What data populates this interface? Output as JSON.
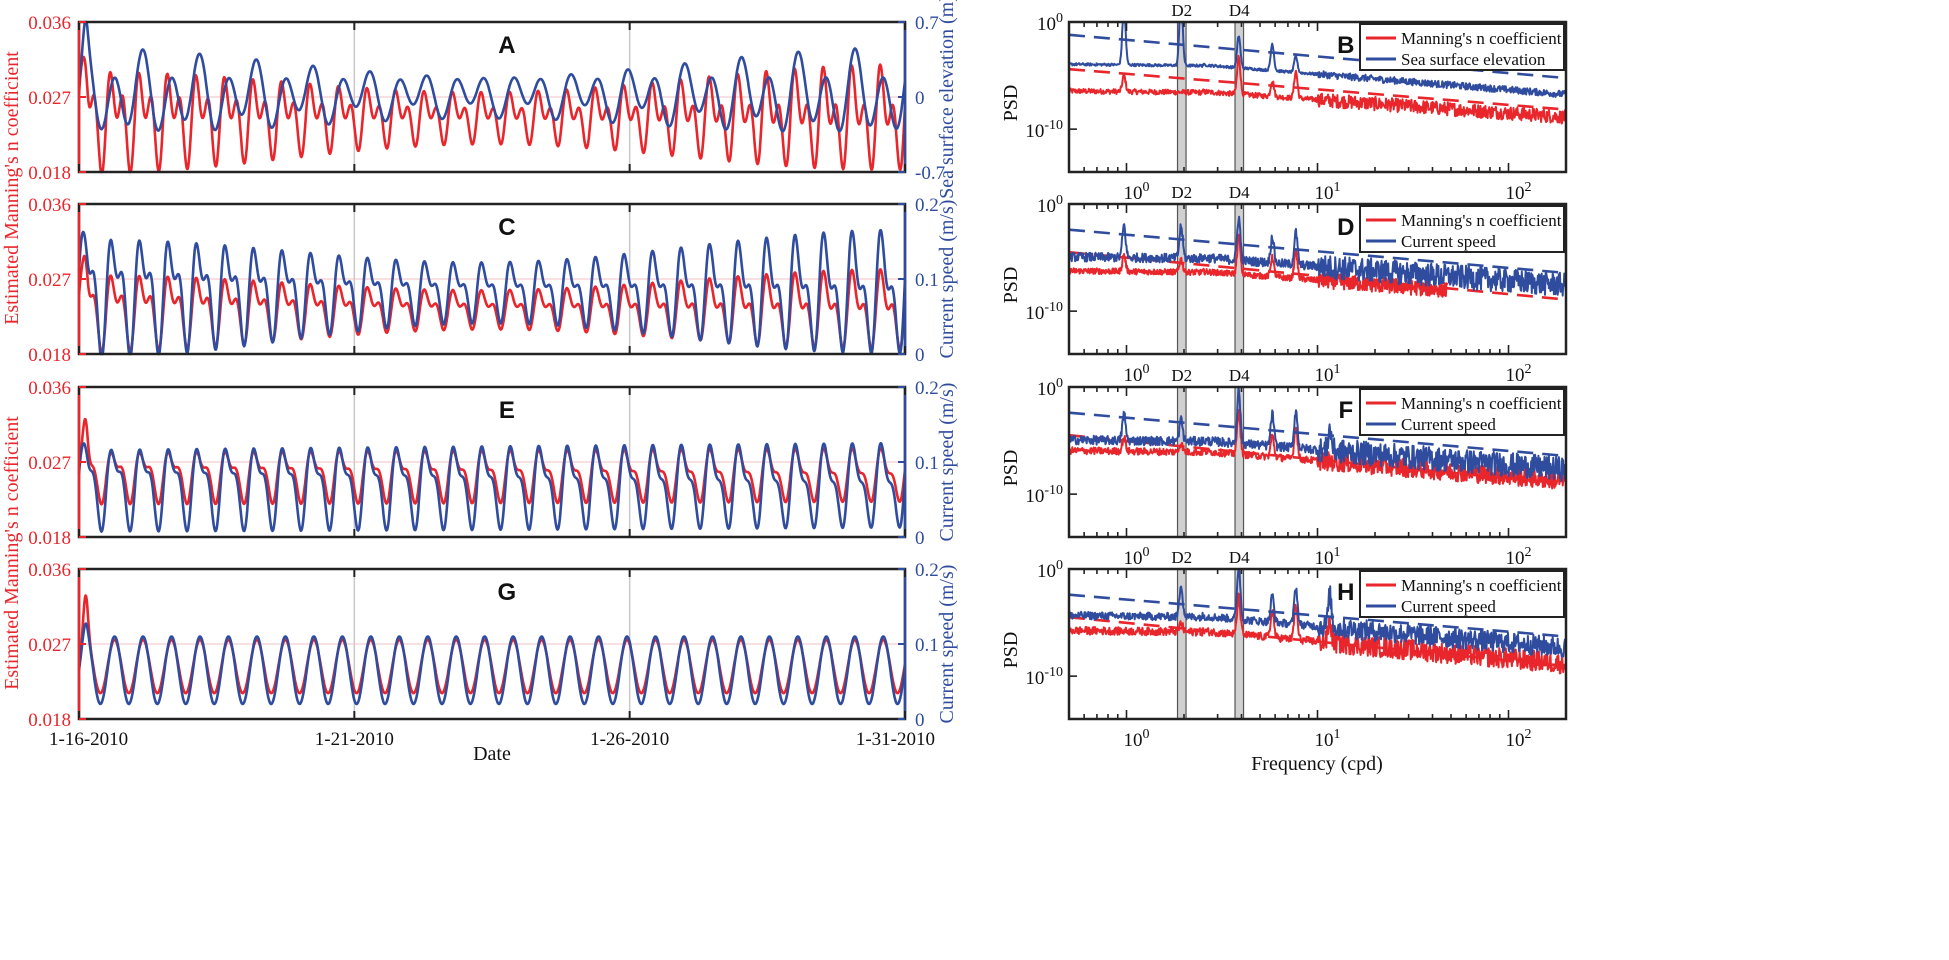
{
  "figure": {
    "x_axis_label_time": "Date",
    "x_axis_label_freq": "Frequency (cpd)",
    "colors": {
      "red": "#e8262b",
      "blue": "#2f4c9f",
      "gray_band": "#d0d0d0",
      "grid": "#c8c8c8"
    },
    "left_y_labels": [
      "Estimated Manning's n coefficient",
      "Estimated Manning's n coefficient"
    ]
  },
  "chart_data": [
    {
      "id": "A",
      "type": "line",
      "title": "A",
      "x_tick_labels": [
        "1-16-2010",
        "1-21-2010",
        "1-26-2010",
        "1-31-2010"
      ],
      "xlim_days": [
        0,
        15
      ],
      "ylabel_left": "Estimated Manning's n coefficient",
      "ylim_left": [
        0.018,
        0.036
      ],
      "yticks_left": [
        "0.018",
        "0.027",
        "0.036"
      ],
      "ylabel_right": "Sea surface elevation (m)",
      "ylim_right": [
        -0.7,
        0.7
      ],
      "yticks_right": [
        "-0.7",
        "0",
        "0.7"
      ],
      "series": [
        {
          "name": "Manning's n coefficient",
          "axis": "left",
          "color": "#e8262b",
          "model": {
            "mean": 0.0247,
            "amp_a": 0.0037,
            "amp_b": 0.0035,
            "period_a_days": 0.517,
            "period_b_days": 0.259,
            "spring_neap_days": 14.77,
            "spike": 0.033
          }
        },
        {
          "name": "Sea surface elevation",
          "axis": "right",
          "color": "#2f4c9f",
          "model": {
            "mean": 0.02,
            "amp_a": 0.3,
            "amp_b": 0.14,
            "period_a_days": 0.517,
            "period_b_days": 1.0,
            "spring_neap_days": 14.77,
            "spike": 0.55
          }
        }
      ]
    },
    {
      "id": "C",
      "type": "line",
      "title": "C",
      "x_tick_labels": [
        "1-16-2010",
        "1-21-2010",
        "1-26-2010",
        "1-31-2010"
      ],
      "xlim_days": [
        0,
        15
      ],
      "ylim_left": [
        0.018,
        0.036
      ],
      "yticks_left": [
        "0.018",
        "0.027",
        "0.036"
      ],
      "ylabel_right": "Current speed (m/s)",
      "ylim_right": [
        0,
        0.2
      ],
      "yticks_right": [
        "0",
        "0.1",
        "0.2"
      ],
      "series": [
        {
          "name": "Manning's n coefficient",
          "axis": "left",
          "color": "#e8262b",
          "model": {
            "mean": 0.0235,
            "amp_a": 0.0033,
            "amp_b": 0.0022,
            "period_a_days": 0.517,
            "period_b_days": 0.259,
            "spring_neap_days": 14.77,
            "spike": 0.031
          }
        },
        {
          "name": "Current speed",
          "axis": "right",
          "color": "#2f4c9f",
          "model": {
            "mean": 0.085,
            "amp_a": 0.06,
            "amp_b": 0.035,
            "period_a_days": 0.517,
            "period_b_days": 0.259,
            "spring_neap_days": 14.77,
            "spike": 0.13
          }
        }
      ]
    },
    {
      "id": "E",
      "type": "line",
      "title": "E",
      "x_tick_labels": [
        "1-16-2010",
        "1-21-2010",
        "1-26-2010",
        "1-31-2010"
      ],
      "xlim_days": [
        0,
        15
      ],
      "ylabel_left": "Estimated Manning's n coefficient",
      "ylim_left": [
        0.018,
        0.036
      ],
      "yticks_left": [
        "0.018",
        "0.027",
        "0.036"
      ],
      "ylabel_right": "Current speed (m/s)",
      "ylim_right": [
        0,
        0.2
      ],
      "yticks_right": [
        "0",
        "0.1",
        "0.2"
      ],
      "series": [
        {
          "name": "Manning's n coefficient",
          "axis": "left",
          "color": "#e8262b",
          "model": {
            "mean": 0.0255,
            "amp_a": 0.0025,
            "amp_b": 0.0012,
            "period_a_days": 0.517,
            "period_b_days": 0.259,
            "spring_neap_days": 0,
            "spike": 0.035
          }
        },
        {
          "name": "Current speed",
          "axis": "right",
          "color": "#2f4c9f",
          "model": {
            "mean": 0.07,
            "amp_a": 0.045,
            "amp_b": 0.02,
            "period_a_days": 0.517,
            "period_b_days": 0.259,
            "spring_neap_days": 0,
            "spike": 0.1
          }
        }
      ]
    },
    {
      "id": "G",
      "type": "line",
      "title": "G",
      "x_tick_labels": [
        "1-16-2010",
        "1-21-2010",
        "1-26-2010",
        "1-31-2010"
      ],
      "xlim_days": [
        0,
        15
      ],
      "ylim_left": [
        0.018,
        0.036
      ],
      "yticks_left": [
        "0.018",
        "0.027",
        "0.036"
      ],
      "ylabel_right": "Current speed (m/s)",
      "ylim_right": [
        0,
        0.2
      ],
      "yticks_right": [
        "0",
        "0.1",
        "0.2"
      ],
      "series": [
        {
          "name": "Manning's n coefficient",
          "axis": "left",
          "color": "#e8262b",
          "model": {
            "mean": 0.0243,
            "amp_a": 0.0032,
            "amp_b": 0.0,
            "period_a_days": 0.517,
            "period_b_days": 0.259,
            "spring_neap_days": 0,
            "spike": 0.035
          }
        },
        {
          "name": "Current speed",
          "axis": "right",
          "color": "#2f4c9f",
          "model": {
            "mean": 0.065,
            "amp_a": 0.045,
            "amp_b": 0.0,
            "period_a_days": 0.517,
            "period_b_days": 0.259,
            "spring_neap_days": 0,
            "spike": 0.1
          }
        }
      ]
    },
    {
      "id": "B",
      "type": "line",
      "title": "B",
      "scale": "loglog",
      "xlim": [
        0.5,
        200
      ],
      "ylim_exp": [
        -14,
        0
      ],
      "x_tick_labels": [
        "10^0",
        "10^1",
        "10^2"
      ],
      "y_tick_labels": [
        "10^0",
        "10^-10"
      ],
      "ylabel": "PSD",
      "bands": [
        {
          "label": "D2",
          "from": 1.85,
          "to": 2.05
        },
        {
          "label": "D4",
          "from": 3.7,
          "to": 4.1
        }
      ],
      "legend": [
        "Manning's n coefficient",
        "Sea surface elevation"
      ],
      "series": [
        {
          "name": "Manning's n coefficient",
          "color": "#e8262b",
          "base_exp": -6.5,
          "slope": -1.25,
          "peaks": [
            [
              0.97,
              1.5
            ],
            [
              3.87,
              3.5
            ],
            [
              5.8,
              1.5
            ],
            [
              7.7,
              2.5
            ]
          ],
          "noise": 0.4,
          "dash_start_exp": -4.4,
          "dash_slope": -1.45
        },
        {
          "name": "Sea surface elevation",
          "color": "#2f4c9f",
          "base_exp": -4.0,
          "slope": -1.45,
          "peaks": [
            [
              0.97,
              5.5
            ],
            [
              1.93,
              6.5
            ],
            [
              3.87,
              3.0
            ],
            [
              5.8,
              2.5
            ],
            [
              7.7,
              1.5
            ]
          ],
          "noise": 0.2,
          "dash_start_exp": -1.2,
          "dash_slope": -1.55
        }
      ]
    },
    {
      "id": "D",
      "type": "line",
      "title": "D",
      "scale": "loglog",
      "xlim": [
        0.5,
        200
      ],
      "ylim_exp": [
        -14,
        0
      ],
      "x_tick_labels": [
        "10^0",
        "10^1",
        "10^2"
      ],
      "y_tick_labels": [
        "10^0",
        "10^-10"
      ],
      "ylabel": "PSD",
      "bands": [
        {
          "label": "D2",
          "from": 1.85,
          "to": 2.05
        },
        {
          "label": "D4",
          "from": 3.7,
          "to": 4.1
        }
      ],
      "legend": [
        "Manning's n coefficient",
        "Current speed"
      ],
      "series": [
        {
          "name": "Manning's n coefficient",
          "color": "#e8262b",
          "base_exp": -6.3,
          "slope": -1.35,
          "peaks": [
            [
              0.97,
              1.5
            ],
            [
              1.93,
              1.2
            ],
            [
              3.87,
              3.5
            ],
            [
              5.8,
              1.8
            ],
            [
              7.7,
              2.5
            ]
          ],
          "noise": 0.45,
          "cutoff": 48,
          "dash_start_exp": -4.5,
          "dash_slope": -1.7
        },
        {
          "name": "Current speed",
          "color": "#2f4c9f",
          "base_exp": -5.0,
          "slope": -1.35,
          "peaks": [
            [
              0.97,
              3.0
            ],
            [
              1.93,
              3.0
            ],
            [
              3.87,
              4.0
            ],
            [
              5.8,
              2.5
            ],
            [
              7.7,
              3.0
            ]
          ],
          "noise": 0.7,
          "dash_start_exp": -2.4,
          "dash_slope": -1.55
        }
      ]
    },
    {
      "id": "F",
      "type": "line",
      "title": "F",
      "scale": "loglog",
      "xlim": [
        0.5,
        200
      ],
      "ylim_exp": [
        -14,
        0
      ],
      "x_tick_labels": [
        "10^0",
        "10^1",
        "10^2"
      ],
      "y_tick_labels": [
        "10^0",
        "10^-10"
      ],
      "ylabel": "PSD",
      "bands": [
        {
          "label": "D2",
          "from": 1.85,
          "to": 2.05
        },
        {
          "label": "D4",
          "from": 3.7,
          "to": 4.1
        }
      ],
      "legend": [
        "Manning's n coefficient",
        "Current speed"
      ],
      "series": [
        {
          "name": "Manning's n coefficient",
          "color": "#e8262b",
          "base_exp": -6.0,
          "slope": -1.45,
          "peaks": [
            [
              0.97,
              1.3
            ],
            [
              1.93,
              0.8
            ],
            [
              3.87,
              4.0
            ],
            [
              5.8,
              2.0
            ],
            [
              7.7,
              3.0
            ]
          ],
          "noise": 0.55,
          "dash_start_exp": -4.5,
          "dash_slope": -1.75
        },
        {
          "name": "Current speed",
          "color": "#2f4c9f",
          "base_exp": -5.0,
          "slope": -1.4,
          "peaks": [
            [
              0.97,
              2.5
            ],
            [
              1.93,
              2.0
            ],
            [
              3.87,
              5.0
            ],
            [
              5.8,
              3.0
            ],
            [
              7.7,
              3.5
            ],
            [
              11.6,
              2.0
            ]
          ],
          "noise": 0.7,
          "dash_start_exp": -2.4,
          "dash_slope": -1.55
        }
      ]
    },
    {
      "id": "H",
      "type": "line",
      "title": "H",
      "scale": "loglog",
      "xlim": [
        0.5,
        200
      ],
      "ylim_exp": [
        -14,
        0
      ],
      "x_tick_labels": [
        "10^0",
        "10^1",
        "10^2"
      ],
      "y_tick_labels": [
        "10^0",
        "10^-10"
      ],
      "ylabel": "PSD",
      "xlabel": "Frequency (cpd)",
      "bands": [
        {
          "label": "D2",
          "from": 1.85,
          "to": 2.05
        },
        {
          "label": "D4",
          "from": 3.7,
          "to": 4.1
        }
      ],
      "legend": [
        "Manning's n coefficient",
        "Current speed"
      ],
      "series": [
        {
          "name": "Manning's n coefficient",
          "color": "#e8262b",
          "base_exp": -5.8,
          "slope": -1.6,
          "peaks": [
            [
              1.93,
              0.8
            ],
            [
              3.87,
              3.5
            ],
            [
              5.8,
              2.5
            ],
            [
              7.7,
              3.2
            ],
            [
              11.6,
              2.0
            ]
          ],
          "noise": 0.6,
          "dash_start_exp": -4.5,
          "dash_slope": -1.75
        },
        {
          "name": "Current speed",
          "color": "#2f4c9f",
          "base_exp": -4.4,
          "slope": -1.55,
          "peaks": [
            [
              1.93,
              3.0
            ],
            [
              3.87,
              5.0
            ],
            [
              5.8,
              2.5
            ],
            [
              7.7,
              3.5
            ],
            [
              11.6,
              3.0
            ]
          ],
          "noise": 0.6,
          "dash_start_exp": -2.4,
          "dash_slope": -1.5
        }
      ]
    }
  ]
}
